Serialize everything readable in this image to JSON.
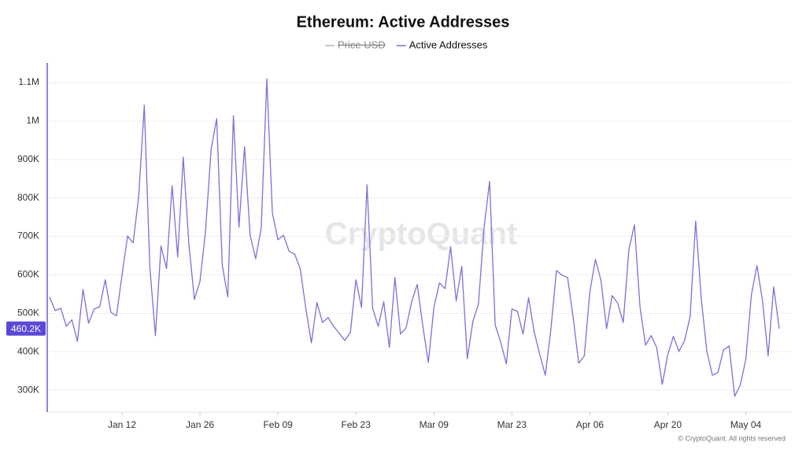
{
  "chart_data": {
    "type": "line",
    "title": "Ethereum: Active Addresses",
    "watermark": "CryptoQuant",
    "footer": "© CryptoQuant. All rights reserved",
    "legend": [
      {
        "name": "Price USD",
        "color": "#b5b5b5",
        "hidden": true
      },
      {
        "name": "Active Addresses",
        "color": "#7e6fd6",
        "hidden": false
      }
    ],
    "categories": [
      null,
      null,
      null,
      null,
      null,
      null,
      null,
      null,
      null,
      null,
      null,
      null,
      null,
      "Jan 12",
      null,
      null,
      null,
      null,
      null,
      null,
      null,
      null,
      null,
      null,
      null,
      null,
      null,
      "Jan 26",
      null,
      null,
      null,
      null,
      null,
      null,
      null,
      null,
      null,
      null,
      null,
      null,
      null,
      "Feb 09",
      null,
      null,
      null,
      null,
      null,
      null,
      null,
      null,
      null,
      null,
      null,
      null,
      null,
      "Feb 23",
      null,
      null,
      null,
      null,
      null,
      null,
      null,
      null,
      null,
      null,
      null,
      null,
      null,
      "Mar 09",
      null,
      null,
      null,
      null,
      null,
      null,
      null,
      null,
      null,
      null,
      null,
      null,
      null,
      "Mar 23",
      null,
      null,
      null,
      null,
      null,
      null,
      null,
      null,
      null,
      null,
      null,
      null,
      null,
      "Apr 06",
      null,
      null,
      null,
      null,
      null,
      null,
      null,
      null,
      null,
      null,
      null,
      null,
      null,
      "Apr 20",
      null,
      null,
      null,
      null,
      null,
      null,
      null,
      null,
      null,
      null,
      null,
      null,
      null,
      "May 04",
      null,
      null,
      null,
      null,
      null,
      null
    ],
    "series": [
      {
        "name": "Active Addresses",
        "color": "#7e6fd6",
        "values": [
          542000,
          507000,
          513000,
          466000,
          483000,
          427000,
          562000,
          474000,
          511000,
          517000,
          587000,
          503000,
          493000,
          599000,
          701000,
          683000,
          804000,
          1041000,
          620000,
          442000,
          675000,
          616000,
          832000,
          646000,
          906000,
          681000,
          536000,
          583000,
          714000,
          926000,
          1006000,
          626000,
          542000,
          1014000,
          724000,
          933000,
          703000,
          642000,
          722000,
          1110000,
          761000,
          691000,
          703000,
          661000,
          654000,
          616000,
          513000,
          423000,
          528000,
          476000,
          489000,
          466000,
          448000,
          429000,
          450000,
          587000,
          515000,
          834000,
          513000,
          466000,
          530000,
          411000,
          593000,
          446000,
          462000,
          530000,
          575000,
          468000,
          372000,
          515000,
          579000,
          564000,
          673000,
          532000,
          622000,
          382000,
          479000,
          524000,
          722000,
          843000,
          470000,
          425000,
          368000,
          511000,
          505000,
          446000,
          540000,
          452000,
          393000,
          339000,
          458000,
          611000,
          599000,
          593000,
          489000,
          370000,
          389000,
          556000,
          640000,
          585000,
          460000,
          546000,
          526000,
          476000,
          665000,
          730000,
          517000,
          417000,
          442000,
          411000,
          315000,
          393000,
          440000,
          401000,
          429000,
          491000,
          740000,
          538000,
          401000,
          339000,
          346000,
          405000,
          415000,
          284000,
          313000,
          380000,
          548000,
          624000,
          532000,
          389000,
          569000,
          460200
        ]
      }
    ],
    "current_value": {
      "value": 460200,
      "label": "460.2K"
    },
    "ylim": [
      243000,
      1151000
    ],
    "yticks": [
      {
        "value": 300000,
        "label": "300K"
      },
      {
        "value": 400000,
        "label": "400K"
      },
      {
        "value": 500000,
        "label": "500K"
      },
      {
        "value": 600000,
        "label": "600K"
      },
      {
        "value": 700000,
        "label": "700K"
      },
      {
        "value": 800000,
        "label": "800K"
      },
      {
        "value": 900000,
        "label": "900K"
      },
      {
        "value": 1000000,
        "label": "1M"
      },
      {
        "value": 1100000,
        "label": "1.1M"
      }
    ],
    "grid": true
  }
}
